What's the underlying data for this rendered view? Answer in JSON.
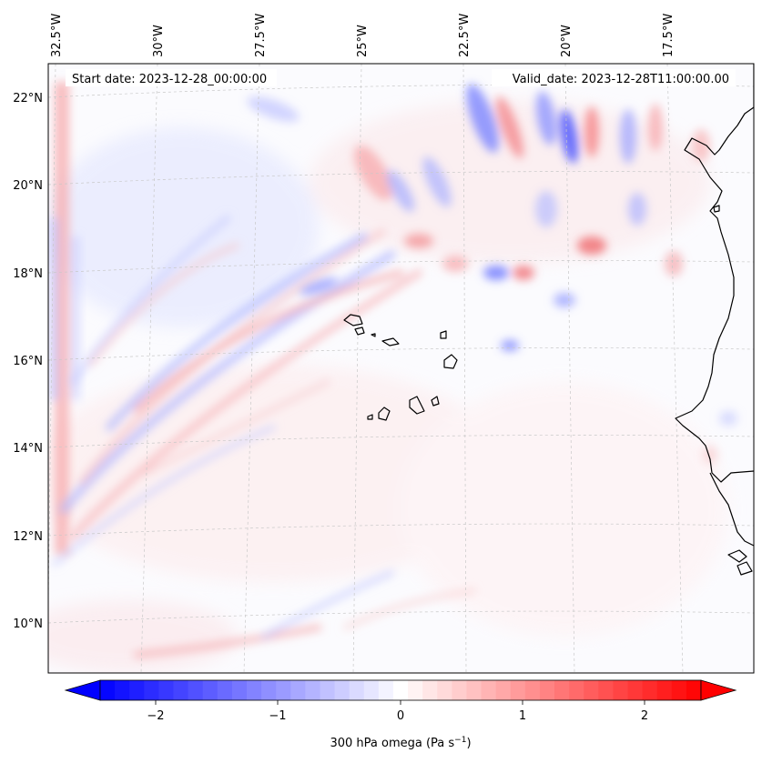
{
  "map": {
    "start_label": "Start date: 2023-12-28_00:00:00",
    "valid_label": "Valid_date: 2023-12-28T11:00:00.00",
    "lon_labels": [
      "32.5°W",
      "30°W",
      "27.5°W",
      "25°W",
      "22.5°W",
      "20°W",
      "17.5°W"
    ],
    "lat_labels": [
      "22°N",
      "20°N",
      "18°N",
      "16°N",
      "14°N",
      "12°N",
      "10°N"
    ],
    "colorbar": {
      "label_main": "300 hPa omega (Pa s",
      "label_exp": "−1",
      "label_close": ")",
      "ticks": [
        "−2",
        "−1",
        "0",
        "1",
        "2"
      ],
      "vmin": -2.75,
      "vmax": 2.75,
      "colors": {
        "neg": "#0000ff",
        "mid": "#ffffff",
        "pos": "#ff0000"
      }
    },
    "colors": {
      "coast": "#000000",
      "grid": "#c8c8c8",
      "background": "#fbfbfe"
    }
  }
}
